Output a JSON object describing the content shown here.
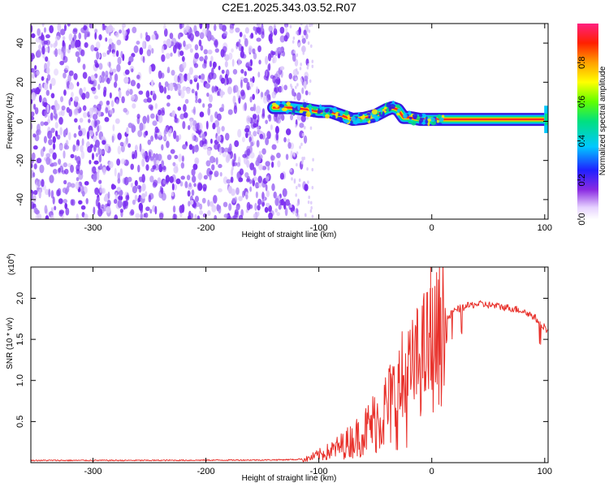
{
  "figure": {
    "title": "C2E1.2025.343.03.52.R07"
  },
  "chart_data": [
    {
      "type": "heatmap",
      "title": "",
      "xlabel": "Height of straight line (km)",
      "ylabel": "Frequency (Hz)",
      "xlim": [
        -355,
        103
      ],
      "ylim": [
        -50,
        50
      ],
      "xticks": [
        "-300",
        "-200",
        "-100",
        "0",
        "100"
      ],
      "yticks": [
        "-40",
        "-20",
        "0",
        "20",
        "40"
      ],
      "noise_region_km": [
        -355,
        -110
      ],
      "signal_start_km": -140,
      "frequency_trace": {
        "x": [
          -140,
          -125,
          -110,
          -100,
          -90,
          -80,
          -70,
          -60,
          -50,
          -40,
          -35,
          -30,
          -25,
          -20,
          -10,
          0,
          10,
          20,
          40,
          60,
          80,
          100
        ],
        "y": [
          7,
          7,
          6,
          5,
          5,
          3,
          1,
          1.5,
          3,
          6,
          7,
          6,
          2,
          2,
          1,
          1,
          1,
          1,
          1,
          1,
          1,
          1
        ]
      },
      "colorbar": {
        "label": "Normalized spectral amplitude",
        "range": [
          0,
          1
        ],
        "ticks": [
          "0.0",
          "0.2",
          "0.4",
          "0.6",
          "0.8"
        ]
      }
    },
    {
      "type": "line",
      "title": "",
      "xlabel": "Height of straight line (km)",
      "ylabel": "SNR (10 * v/v)",
      "scale_label": "(x10",
      "scale_exponent": "4",
      "xlim": [
        -355,
        103
      ],
      "ylim": [
        0,
        23800
      ],
      "xticks": [
        "-300",
        "-200",
        "-100",
        "0",
        "100"
      ],
      "yticks": [
        "0.5",
        "1.0",
        "1.5",
        "2.0"
      ],
      "series": [
        {
          "name": "SNR",
          "color": "#e8302a",
          "x": [
            -355,
            -250,
            -150,
            -120,
            -110,
            -100,
            -90,
            -80,
            -70,
            -60,
            -50,
            -40,
            -30,
            -20,
            -15,
            -10,
            -5,
            0,
            10,
            20,
            30,
            40,
            50,
            60,
            70,
            80,
            90,
            100,
            103
          ],
          "y": [
            200,
            200,
            250,
            300,
            500,
            1000,
            1500,
            2200,
            3000,
            4000,
            5500,
            7000,
            9000,
            11000,
            12500,
            13500,
            14500,
            15000,
            17000,
            18500,
            19000,
            19300,
            19200,
            19000,
            18800,
            18500,
            17800,
            16500,
            16000
          ]
        }
      ],
      "peak": {
        "x": -1,
        "y": 23800
      }
    }
  ]
}
